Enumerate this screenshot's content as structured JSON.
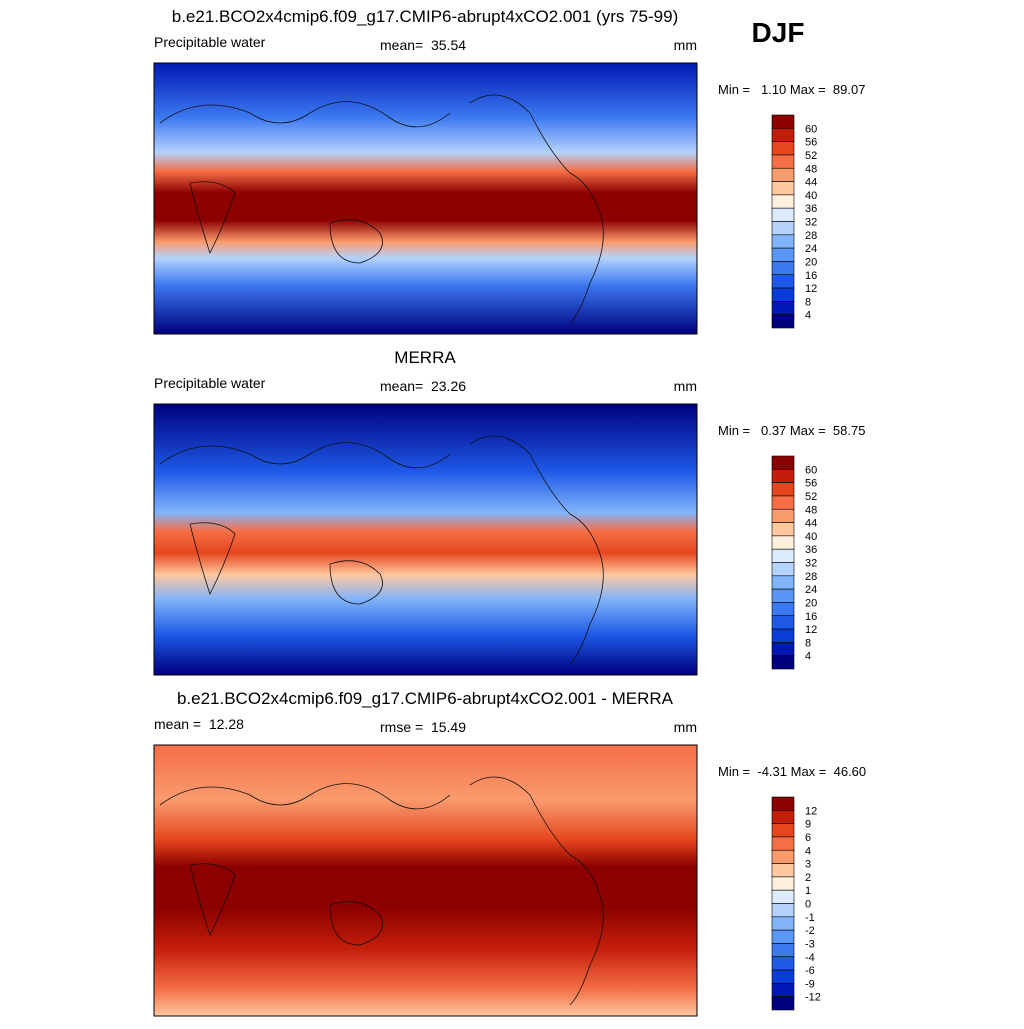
{
  "season": "DJF",
  "palette": [
    "#00007f",
    "#0019b4",
    "#0a3cd7",
    "#1e5ae6",
    "#3c78f0",
    "#5a96f5",
    "#82b4fa",
    "#b4d2fc",
    "#dcebfe",
    "#fff0dc",
    "#ffc8a0",
    "#fa9b6e",
    "#f56e46",
    "#e6461e",
    "#c31e0a",
    "#8c0000"
  ],
  "panels": [
    {
      "title": "b.e21.BCO2x4cmip6.f09_g17.CMIP6-abrupt4xCO2.001 (yrs 75-99)",
      "left": "Precipitable water",
      "center": "mean=  35.54",
      "right": "mm",
      "minmax": "Min =   1.10 Max =  89.07",
      "levels": [
        60,
        56,
        52,
        48,
        44,
        40,
        36,
        32,
        28,
        24,
        20,
        16,
        12,
        8,
        4
      ]
    },
    {
      "title": "MERRA",
      "left": "Precipitable water",
      "center": "mean=  23.26",
      "right": "mm",
      "minmax": "Min =   0.37 Max =  58.75",
      "levels": [
        60,
        56,
        52,
        48,
        44,
        40,
        36,
        32,
        28,
        24,
        20,
        16,
        12,
        8,
        4
      ]
    },
    {
      "title": "b.e21.BCO2x4cmip6.f09_g17.CMIP6-abrupt4xCO2.001 - MERRA",
      "left": "mean =  12.28",
      "center": "rmse =  15.49",
      "right": "mm",
      "minmax": "Min =  -4.31 Max =  46.60",
      "levels": [
        12,
        9,
        6,
        4,
        3,
        2,
        1,
        0,
        -1,
        -2,
        -3,
        -4,
        -6,
        -9,
        -12
      ]
    }
  ]
}
